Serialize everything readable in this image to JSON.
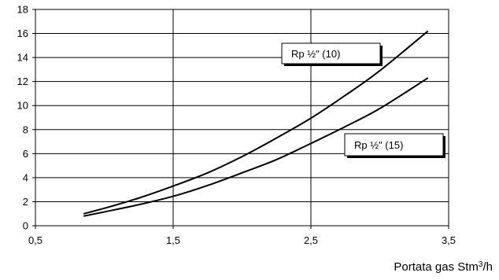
{
  "chart_data": {
    "type": "line",
    "title": "",
    "xlabel": "Portata gas Stm",
    "xlabel_sup": "3",
    "xlabel_tail": "/h",
    "ylabel": "",
    "xlim": [
      0.5,
      3.5
    ],
    "ylim": [
      0,
      18
    ],
    "xticks": [
      0.5,
      1.5,
      2.5,
      3.5
    ],
    "xtick_labels": [
      "0,5",
      "1,5",
      "2,5",
      "3,5"
    ],
    "yticks": [
      0,
      2,
      4,
      6,
      8,
      10,
      12,
      14,
      16,
      18
    ],
    "ytick_labels": [
      "0",
      "2",
      "4",
      "6",
      "8",
      "10",
      "12",
      "14",
      "16",
      "18"
    ],
    "grid": true,
    "series": [
      {
        "name": "Rp ½\" (10)",
        "x": [
          0.85,
          1.0,
          1.25,
          1.5,
          1.75,
          2.0,
          2.25,
          2.5,
          2.75,
          3.0,
          3.35
        ],
        "y": [
          1.0,
          1.45,
          2.3,
          3.3,
          4.4,
          5.75,
          7.3,
          8.95,
          10.85,
          12.9,
          16.2
        ]
      },
      {
        "name": "Rp ½\" (15)",
        "x": [
          0.85,
          1.0,
          1.25,
          1.5,
          1.75,
          2.0,
          2.25,
          2.5,
          2.75,
          3.0,
          3.35
        ],
        "y": [
          0.8,
          1.15,
          1.75,
          2.45,
          3.35,
          4.4,
          5.5,
          6.85,
          8.25,
          9.75,
          12.3
        ]
      }
    ]
  }
}
